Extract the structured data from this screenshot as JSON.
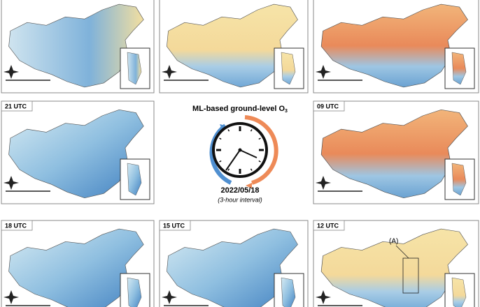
{
  "title": {
    "text": "ML-based ground-level O",
    "subscript": "3"
  },
  "date": "2022/05/18",
  "interval": "(3-hour interval)",
  "panels": [
    {
      "label": "21 UTC"
    },
    {
      "label": "09 UTC"
    },
    {
      "label": "18 UTC"
    },
    {
      "label": "15 UTC"
    },
    {
      "label": "12 UTC",
      "annotation": "(A)"
    }
  ]
}
